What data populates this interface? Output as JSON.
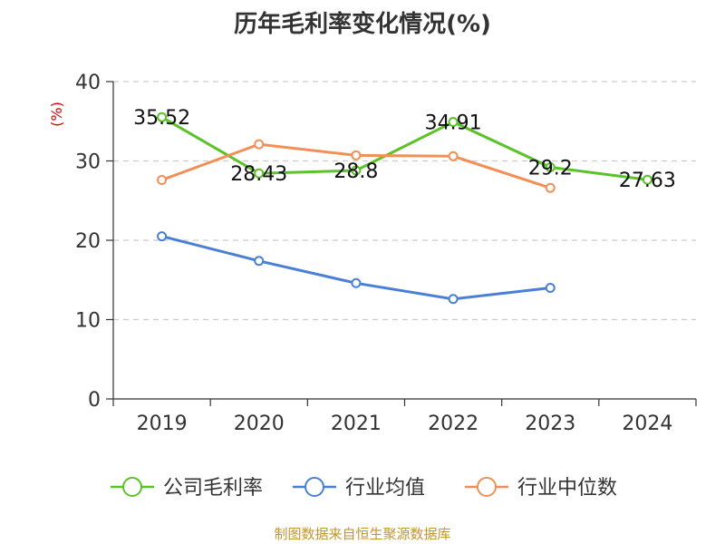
{
  "chart_data": {
    "type": "line",
    "title": "历年毛利率变化情况(%)",
    "ylabel": "(%)",
    "categories": [
      "2019",
      "2020",
      "2021",
      "2022",
      "2023",
      "2024"
    ],
    "ylim": [
      0,
      40
    ],
    "yticks": [
      0,
      10,
      20,
      30,
      40
    ],
    "grid": true,
    "legend_position": "bottom",
    "series": [
      {
        "name": "公司毛利率",
        "color": "#5bc22a",
        "values": [
          35.52,
          28.43,
          28.8,
          34.91,
          29.2,
          27.63
        ],
        "labels": [
          "35.52",
          "28.43",
          "28.8",
          "34.91",
          "29.2",
          "27.63"
        ],
        "show_labels": true
      },
      {
        "name": "行业均值",
        "color": "#4a7fd8",
        "values": [
          20.5,
          17.4,
          14.6,
          12.6,
          14.0,
          null
        ],
        "show_labels": false
      },
      {
        "name": "行业中位数",
        "color": "#f28f57",
        "values": [
          27.6,
          32.1,
          30.7,
          30.6,
          26.6,
          null
        ],
        "show_labels": false
      }
    ]
  },
  "footer": "制图数据来自恒生聚源数据库"
}
